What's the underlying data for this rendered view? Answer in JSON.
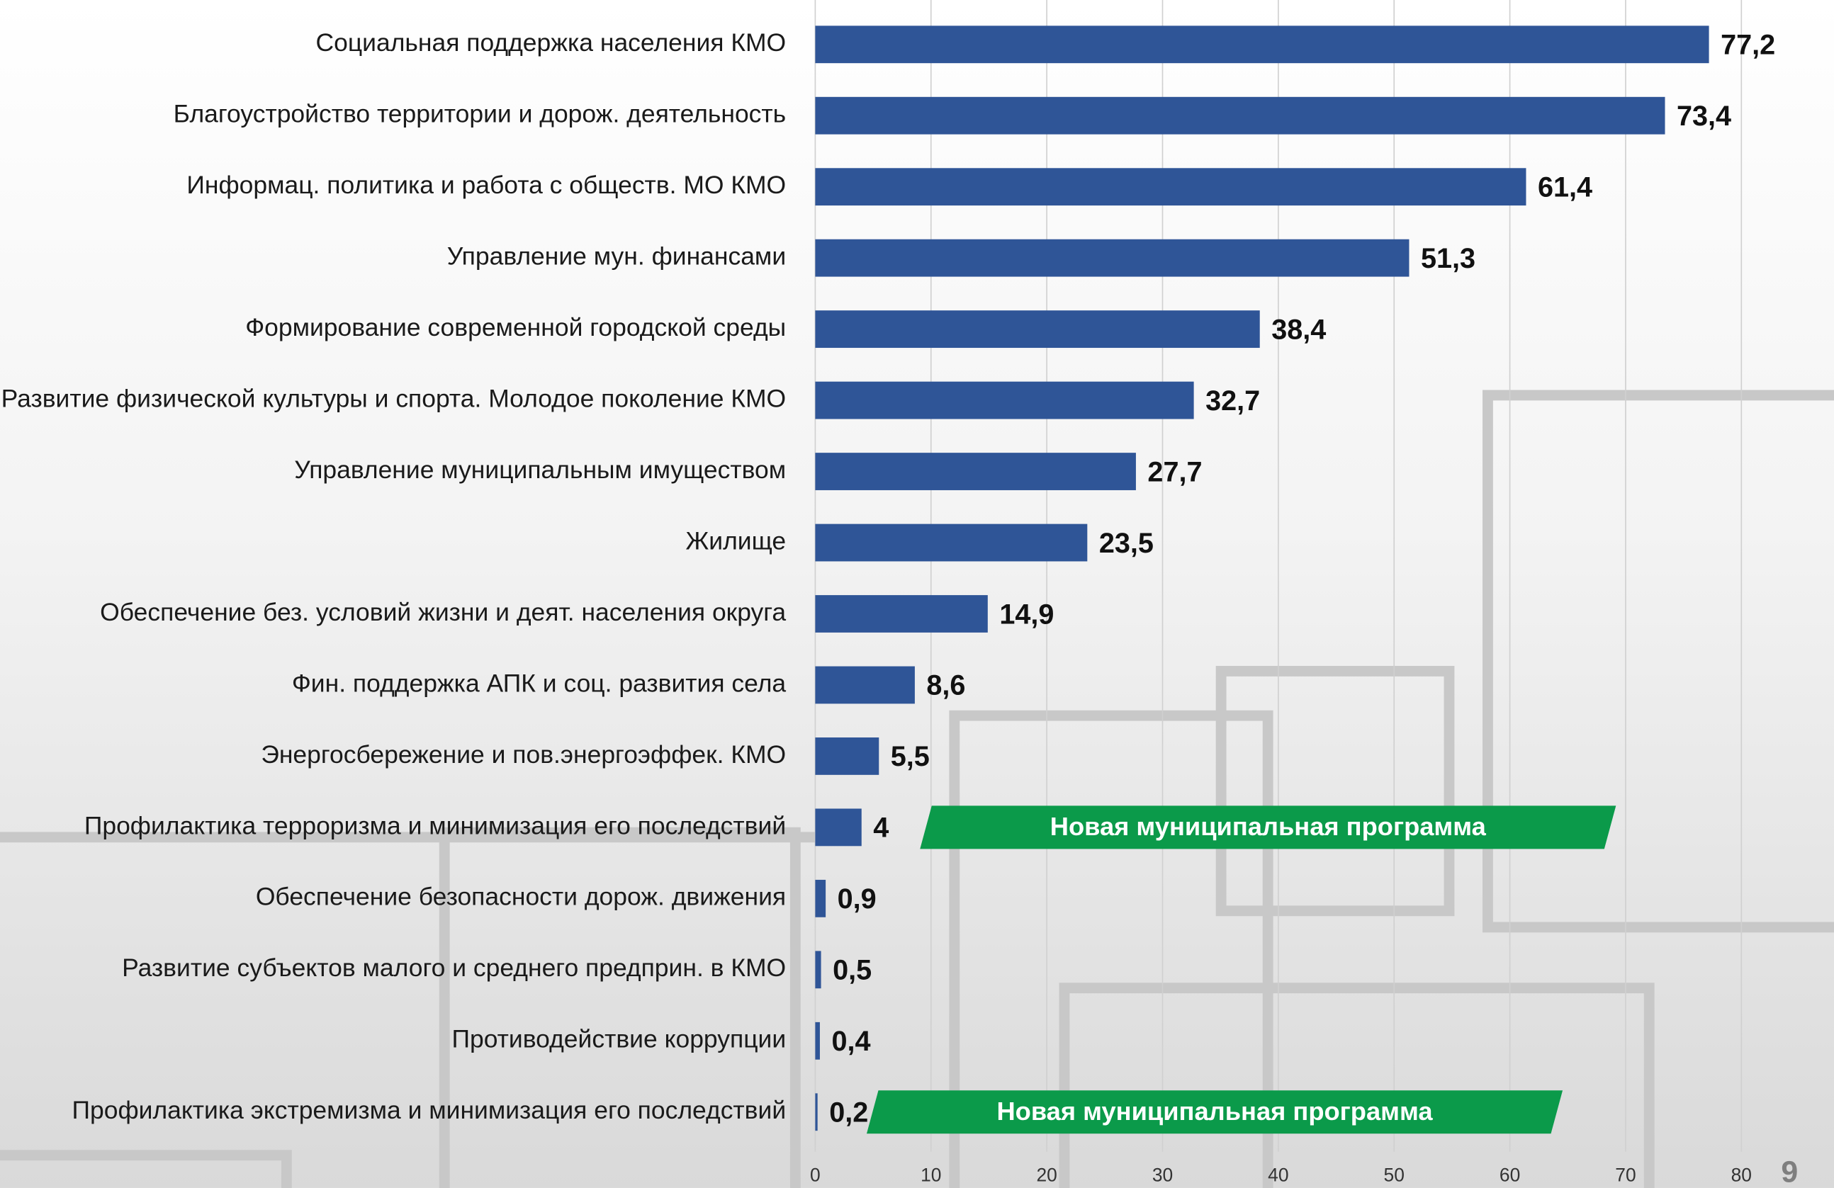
{
  "chart_data": {
    "type": "bar",
    "orientation": "horizontal",
    "categories": [
      "Социальная поддержка населения КМО",
      "Благоустройство территории и дорож. деятельность",
      "Информац. политика  и работа с обществ. МО КМО",
      "Управление мун. финансами",
      "Формирование современной городской среды",
      "Развитие физической культуры и спорта. Молодое поколение КМО",
      "Управление муниципальным имуществом",
      "Жилище",
      "Обеспечение без. условий жизни и деят. населения округа",
      "Фин. поддержка АПК и соц. развития села",
      "Энергосбережение и пов.энергоэффек. КМО",
      "Профилактика терроризма и минимизация его последствий",
      "Обеспечение безопасности дорож. движения",
      "Развитие субъектов малого и среднего предприн. в КМО",
      "Противодействие коррупции",
      "Профилактика экстремизма и минимизация его последствий"
    ],
    "values": [
      77.2,
      73.4,
      61.4,
      51.3,
      38.4,
      32.7,
      27.7,
      23.5,
      14.9,
      8.6,
      5.5,
      4,
      0.9,
      0.5,
      0.4,
      0.2
    ],
    "value_labels": [
      "77,2",
      "73,4",
      "61,4",
      "51,3",
      "38,4",
      "32,7",
      "27,7",
      "23,5",
      "14,9",
      "8,6",
      "5,5",
      "4",
      "0,9",
      "0,5",
      "0,4",
      "0,2"
    ],
    "color": "#2f5597",
    "xlim": [
      0,
      88
    ],
    "xticks": [
      0,
      10,
      20,
      30,
      40,
      50,
      60,
      70,
      80
    ],
    "grid": true,
    "annotations": [
      {
        "text": "Новая муниципальная программа",
        "category": "Профилактика терроризма и минимизация его последствий",
        "color": "#0b9a4a"
      },
      {
        "text": "Новая муниципальная программа",
        "category": "Профилактика экстремизма и минимизация его последствий",
        "color": "#0b9a4a"
      }
    ]
  },
  "page_number": "9"
}
